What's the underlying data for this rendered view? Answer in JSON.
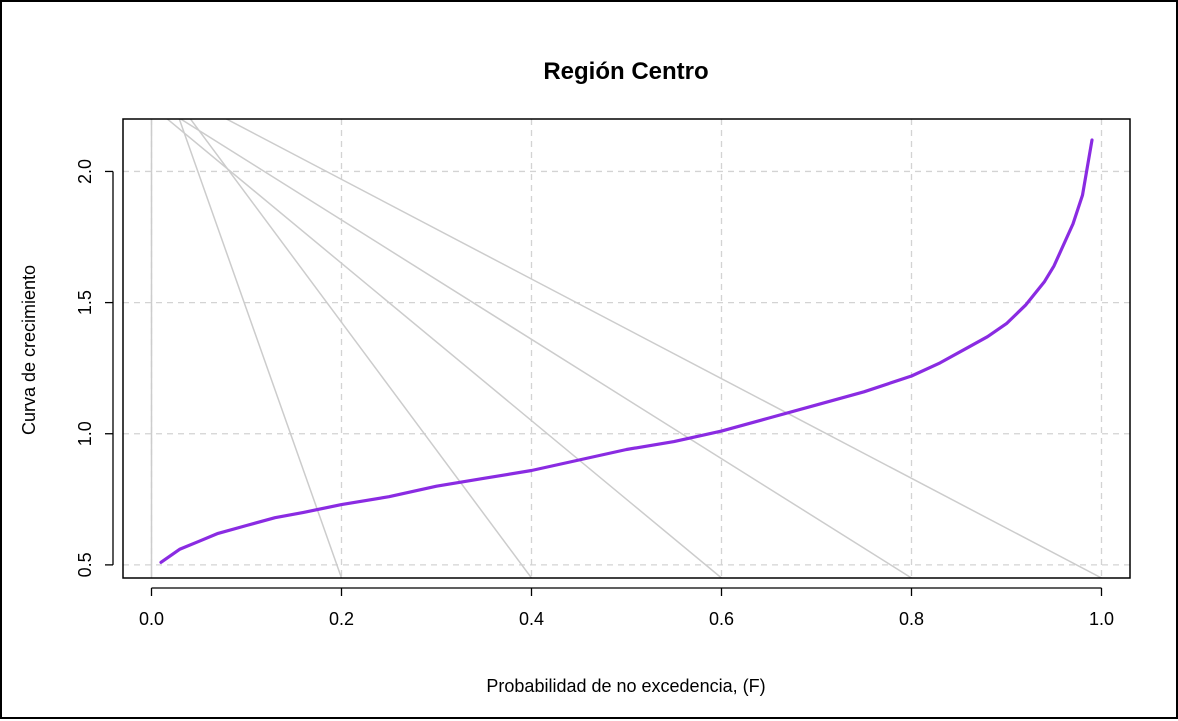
{
  "chart_data": {
    "type": "line",
    "title": "Región Centro",
    "xlabel": "Probabilidad de no excedencia, (F)",
    "ylabel": "Curva de crecimiento",
    "xlim": [
      -0.03,
      1.03
    ],
    "ylim": [
      0.45,
      2.2
    ],
    "x_ticks": [
      0.0,
      0.2,
      0.4,
      0.6,
      0.8,
      1.0
    ],
    "x_tick_labels": [
      "0.0",
      "0.2",
      "0.4",
      "0.6",
      "0.8",
      "1.0"
    ],
    "y_ticks": [
      0.5,
      1.0,
      1.5,
      2.0
    ],
    "y_tick_labels": [
      "0.5",
      "1.0",
      "1.5",
      "2.0"
    ],
    "grid": true,
    "curve_color": "#8a2be2",
    "reference_line_color": "#cccccc",
    "grid_color": "#d3d3d3",
    "reference_lines": [
      {
        "x0": 0.0,
        "y0": 2.55,
        "x1": 0.0,
        "y1": 0.45
      },
      {
        "x0": 0.0,
        "y0": 2.5,
        "x1": 0.2,
        "y1": 0.45
      },
      {
        "x0": 0.0,
        "y0": 2.4,
        "x1": 0.4,
        "y1": 0.45
      },
      {
        "x0": 0.0,
        "y0": 2.25,
        "x1": 0.6,
        "y1": 0.45
      },
      {
        "x0": 0.0,
        "y0": 2.27,
        "x1": 0.8,
        "y1": 0.45
      },
      {
        "x0": 0.0,
        "y0": 2.35,
        "x1": 1.0,
        "y1": 0.45
      }
    ],
    "series": [
      {
        "x": [
          0.01,
          0.03,
          0.05,
          0.07,
          0.1,
          0.13,
          0.16,
          0.2,
          0.25,
          0.3,
          0.35,
          0.4,
          0.45,
          0.5,
          0.55,
          0.6,
          0.65,
          0.7,
          0.75,
          0.8,
          0.83,
          0.86,
          0.88,
          0.9,
          0.92,
          0.94,
          0.95,
          0.96,
          0.97,
          0.98,
          0.99
        ],
        "y": [
          0.51,
          0.56,
          0.59,
          0.62,
          0.65,
          0.68,
          0.7,
          0.73,
          0.76,
          0.8,
          0.83,
          0.86,
          0.9,
          0.94,
          0.97,
          1.01,
          1.06,
          1.11,
          1.16,
          1.22,
          1.27,
          1.33,
          1.37,
          1.42,
          1.49,
          1.58,
          1.64,
          1.72,
          1.8,
          1.91,
          2.12
        ]
      }
    ]
  }
}
